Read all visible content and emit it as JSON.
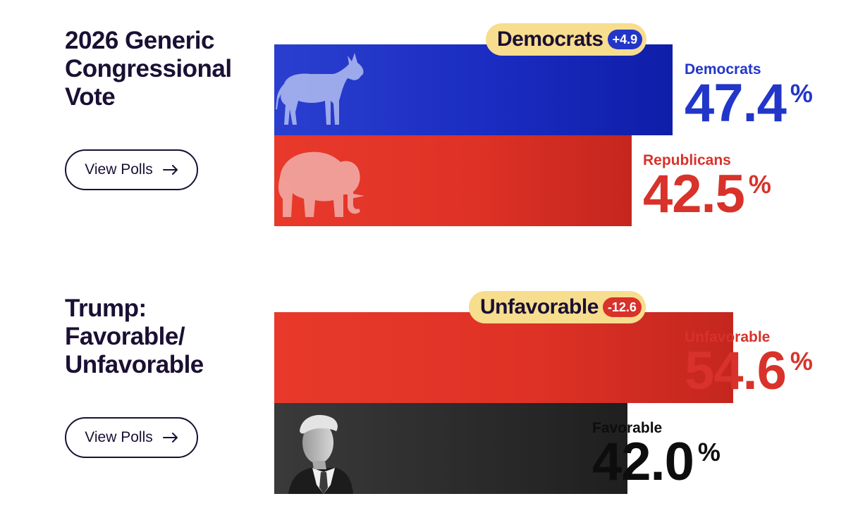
{
  "panels": [
    {
      "title": "2026 Generic Congressional Vote",
      "button_label": "View Polls",
      "badge": {
        "label": "Democrats",
        "value": "+4.9",
        "tone": "blue"
      },
      "bars": [
        {
          "name": "Democrats",
          "value": 47.4,
          "display": "47.4",
          "color": "#2236c9",
          "mascot": "donkey-icon"
        },
        {
          "name": "Republicans",
          "value": 42.5,
          "display": "42.5",
          "color": "#d8322a",
          "mascot": "elephant-icon"
        }
      ]
    },
    {
      "title": "Trump: Favorable/ Unfavorable",
      "button_label": "View Polls",
      "badge": {
        "label": "Unfavorable",
        "value": "-12.6",
        "tone": "red"
      },
      "bars": [
        {
          "name": "Unfavorable",
          "value": 54.6,
          "display": "54.6",
          "color": "#d8322a",
          "mascot": ""
        },
        {
          "name": "Favorable",
          "value": 42.0,
          "display": "42.0",
          "color": "#0d0d0d",
          "mascot": "portrait-icon"
        }
      ]
    }
  ],
  "percent_symbol": "%",
  "chart_data": [
    {
      "type": "bar",
      "title": "2026 Generic Congressional Vote",
      "categories": [
        "Democrats",
        "Republicans"
      ],
      "values": [
        47.4,
        42.5
      ],
      "annotation": "Democrats +4.9"
    },
    {
      "type": "bar",
      "title": "Trump: Favorable/ Unfavorable",
      "categories": [
        "Unfavorable",
        "Favorable"
      ],
      "values": [
        54.6,
        42.0
      ],
      "annotation": "Unfavorable -12.6"
    }
  ]
}
